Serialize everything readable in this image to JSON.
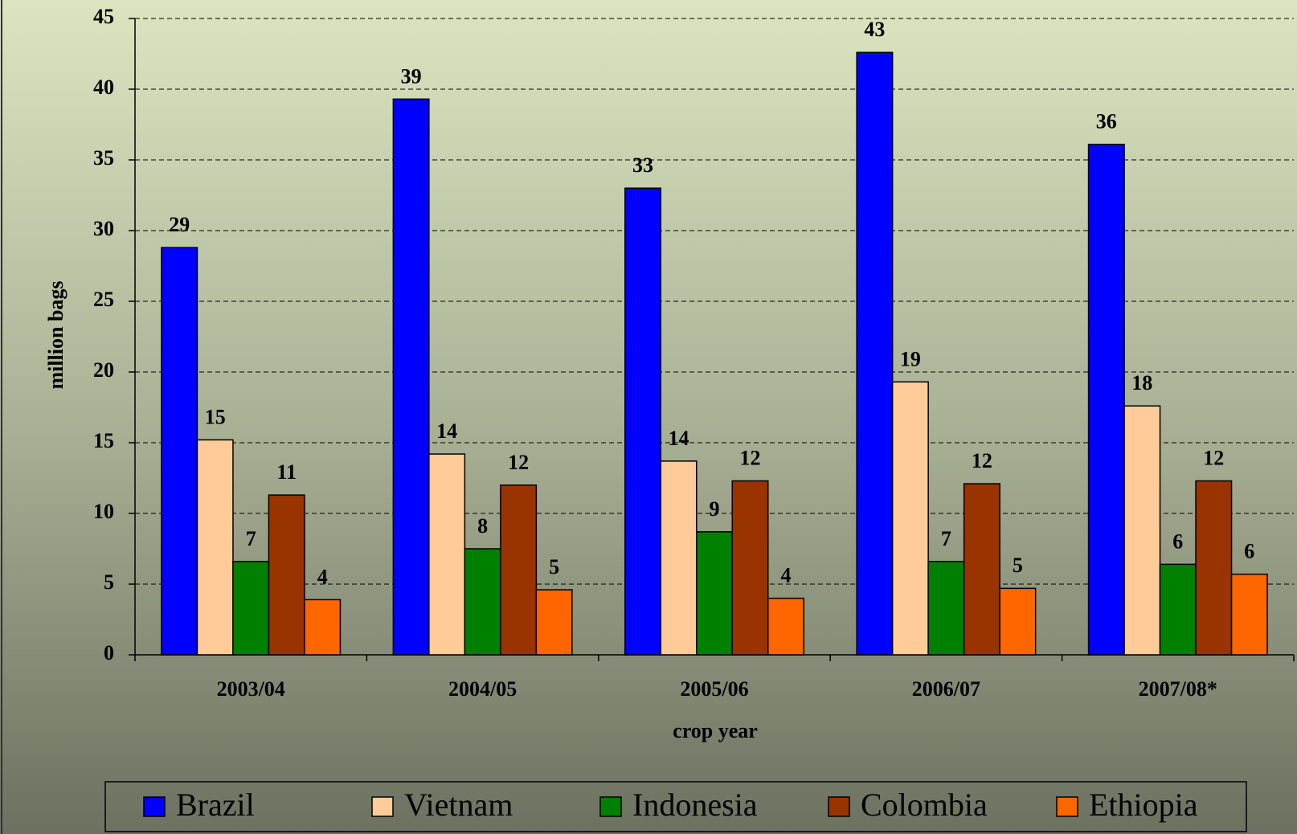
{
  "chart_data": {
    "type": "bar",
    "x_label": "crop year",
    "y_label": "million bags",
    "categories": [
      "2003/04",
      "2004/05",
      "2005/06",
      "2006/07",
      "2007/08*"
    ],
    "series": [
      {
        "name": "Brazil",
        "color": "#0000ff",
        "values": [
          28.8,
          39.3,
          33.0,
          42.6,
          36.1
        ],
        "value_labels": [
          "29",
          "39",
          "33",
          "43",
          "36"
        ]
      },
      {
        "name": "Vietnam",
        "color": "#ffcc99",
        "values": [
          15.2,
          14.2,
          13.7,
          19.3,
          17.6
        ],
        "value_labels": [
          "15",
          "14",
          "14",
          "19",
          "18"
        ]
      },
      {
        "name": "Indonesia",
        "color": "#008000",
        "values": [
          6.6,
          7.5,
          8.7,
          6.6,
          6.4
        ],
        "value_labels": [
          "7",
          "8",
          "9",
          "7",
          "6"
        ]
      },
      {
        "name": "Colombia",
        "color": "#993300",
        "values": [
          11.3,
          12.0,
          12.3,
          12.1,
          12.3
        ],
        "value_labels": [
          "11",
          "12",
          "12",
          "12",
          "12"
        ]
      },
      {
        "name": "Ethiopia",
        "color": "#ff6600",
        "values": [
          3.9,
          4.6,
          4.0,
          4.7,
          5.7
        ],
        "value_labels": [
          "4",
          "5",
          "4",
          "5",
          "6"
        ]
      }
    ],
    "ylim": [
      0,
      45
    ],
    "yticks": [
      0,
      5,
      10,
      15,
      20,
      25,
      30,
      35,
      40,
      45
    ],
    "grid": true,
    "legend": "bottom"
  }
}
